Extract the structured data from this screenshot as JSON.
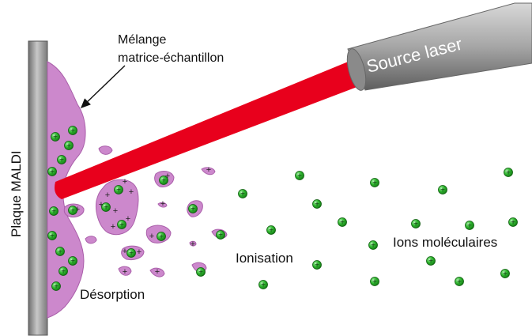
{
  "diagram": {
    "plate_label": "Plaque MALDI",
    "mixture_label_line1": "Mélange",
    "mixture_label_line2": "matrice-échantillon",
    "laser_label": "Source laser",
    "stage_desorption": "Désorption",
    "stage_ionisation": "Ionisation",
    "stage_ions": "Ions moléculaires"
  },
  "colors": {
    "plate": "#9a9a9a",
    "matrix": "#cc88cc",
    "laser_beam": "#e8001c",
    "laser_source": "#8c8c8c",
    "ion": "#22aa22",
    "ion_highlight": "#9ee89e"
  },
  "icons": {
    "ion_symbol": "+",
    "arrow": "arrow-icon"
  }
}
